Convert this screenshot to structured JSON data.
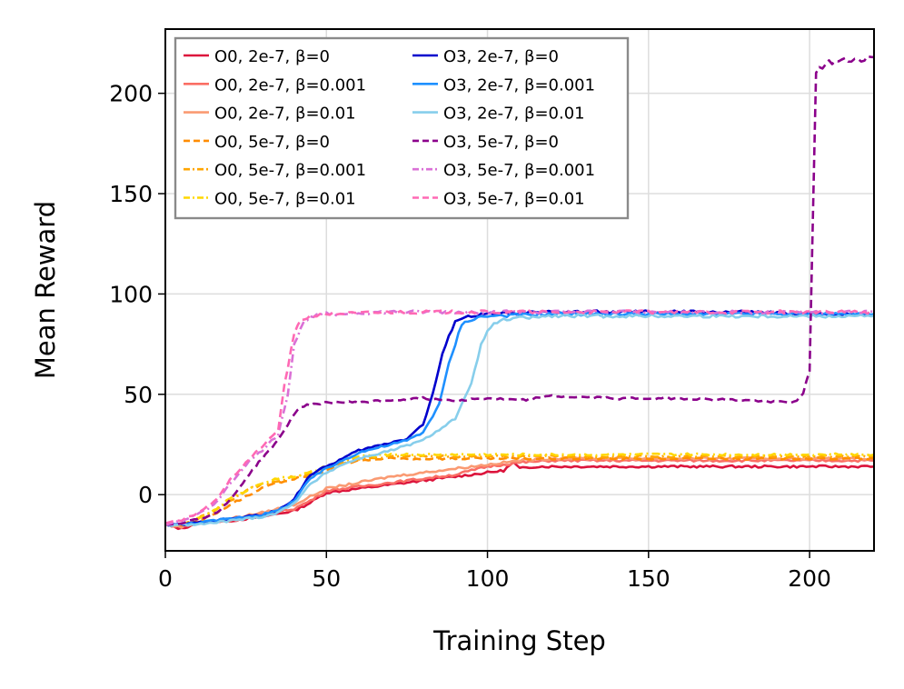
{
  "chart_data": {
    "type": "line",
    "title": "",
    "xlabel": "Training Step",
    "ylabel": "Mean Reward",
    "xlim": [
      0,
      220
    ],
    "ylim": [
      -28,
      232
    ],
    "xticks": [
      0,
      50,
      100,
      150,
      200
    ],
    "yticks": [
      0,
      50,
      100,
      150,
      200
    ],
    "grid": true,
    "legend_position": "top-left",
    "series": [
      {
        "name": "O0, 2e-7, β=0",
        "color": "#dc143c",
        "dash": "solid",
        "points": [
          [
            0,
            -15
          ],
          [
            5,
            -17
          ],
          [
            10,
            -14
          ],
          [
            20,
            -13
          ],
          [
            30,
            -11
          ],
          [
            40,
            -8
          ],
          [
            45,
            -4
          ],
          [
            50,
            1
          ],
          [
            60,
            3
          ],
          [
            70,
            5
          ],
          [
            80,
            7
          ],
          [
            90,
            9
          ],
          [
            100,
            11
          ],
          [
            105,
            12
          ],
          [
            108,
            16
          ],
          [
            110,
            13
          ],
          [
            115,
            14
          ],
          [
            130,
            14
          ],
          [
            150,
            14
          ],
          [
            170,
            14
          ],
          [
            190,
            14
          ],
          [
            210,
            14
          ],
          [
            220,
            14
          ]
        ]
      },
      {
        "name": "O0, 2e-7, β=0.001",
        "color": "#fa6e64",
        "dash": "solid",
        "points": [
          [
            0,
            -15
          ],
          [
            5,
            -16
          ],
          [
            10,
            -14
          ],
          [
            20,
            -13
          ],
          [
            30,
            -10
          ],
          [
            40,
            -7
          ],
          [
            45,
            -3
          ],
          [
            50,
            2
          ],
          [
            60,
            4
          ],
          [
            70,
            6
          ],
          [
            80,
            8
          ],
          [
            90,
            10
          ],
          [
            100,
            14
          ],
          [
            110,
            16
          ],
          [
            120,
            17
          ],
          [
            150,
            17
          ],
          [
            180,
            17
          ],
          [
            220,
            17
          ]
        ]
      },
      {
        "name": "O0, 2e-7, β=0.01",
        "color": "#fa9a72",
        "dash": "solid",
        "points": [
          [
            0,
            -15
          ],
          [
            5,
            -16
          ],
          [
            10,
            -14
          ],
          [
            20,
            -12
          ],
          [
            30,
            -9
          ],
          [
            40,
            -5
          ],
          [
            50,
            3
          ],
          [
            60,
            6
          ],
          [
            70,
            9
          ],
          [
            80,
            11
          ],
          [
            90,
            13
          ],
          [
            100,
            15
          ],
          [
            110,
            17
          ],
          [
            120,
            18
          ],
          [
            150,
            18
          ],
          [
            220,
            18
          ]
        ]
      },
      {
        "name": "O0, 5e-7, β=0",
        "color": "#ff8c00",
        "dash": "dash",
        "points": [
          [
            0,
            -15
          ],
          [
            5,
            -15
          ],
          [
            10,
            -13
          ],
          [
            15,
            -10
          ],
          [
            20,
            -5
          ],
          [
            25,
            -1
          ],
          [
            30,
            3
          ],
          [
            35,
            6
          ],
          [
            40,
            8
          ],
          [
            45,
            9
          ],
          [
            50,
            12
          ],
          [
            55,
            15
          ],
          [
            60,
            17
          ],
          [
            70,
            18
          ],
          [
            100,
            18
          ],
          [
            150,
            18
          ],
          [
            220,
            18
          ]
        ]
      },
      {
        "name": "O0, 5e-7, β=0.001",
        "color": "#ffa500",
        "dash": "dashdot",
        "points": [
          [
            0,
            -15
          ],
          [
            5,
            -15
          ],
          [
            10,
            -12
          ],
          [
            15,
            -8
          ],
          [
            20,
            -3
          ],
          [
            25,
            2
          ],
          [
            30,
            5
          ],
          [
            35,
            7
          ],
          [
            40,
            9
          ],
          [
            45,
            10
          ],
          [
            50,
            13
          ],
          [
            55,
            16
          ],
          [
            60,
            18
          ],
          [
            70,
            19
          ],
          [
            100,
            19
          ],
          [
            150,
            19
          ],
          [
            220,
            19
          ]
        ]
      },
      {
        "name": "O0, 5e-7, β=0.01",
        "color": "#ffd700",
        "dash": "dashdot",
        "points": [
          [
            0,
            -15
          ],
          [
            5,
            -15
          ],
          [
            10,
            -12
          ],
          [
            15,
            -8
          ],
          [
            20,
            -2
          ],
          [
            25,
            2
          ],
          [
            30,
            6
          ],
          [
            35,
            8
          ],
          [
            40,
            9
          ],
          [
            45,
            11
          ],
          [
            50,
            14
          ],
          [
            55,
            17
          ],
          [
            60,
            19
          ],
          [
            70,
            20
          ],
          [
            100,
            20
          ],
          [
            150,
            20
          ],
          [
            220,
            20
          ]
        ]
      },
      {
        "name": "O3, 2e-7, β=0",
        "color": "#0000cd",
        "dash": "solid",
        "points": [
          [
            0,
            -15
          ],
          [
            5,
            -15
          ],
          [
            10,
            -14
          ],
          [
            20,
            -12
          ],
          [
            30,
            -10
          ],
          [
            35,
            -8
          ],
          [
            40,
            -2
          ],
          [
            45,
            10
          ],
          [
            50,
            14
          ],
          [
            55,
            18
          ],
          [
            60,
            22
          ],
          [
            65,
            24
          ],
          [
            70,
            26
          ],
          [
            75,
            28
          ],
          [
            80,
            35
          ],
          [
            83,
            50
          ],
          [
            86,
            70
          ],
          [
            90,
            87
          ],
          [
            95,
            89
          ],
          [
            100,
            90
          ],
          [
            120,
            91
          ],
          [
            150,
            91
          ],
          [
            180,
            91
          ],
          [
            200,
            90
          ],
          [
            220,
            90
          ]
        ]
      },
      {
        "name": "O3, 2e-7, β=0.001",
        "color": "#1e90ff",
        "dash": "solid",
        "points": [
          [
            0,
            -15
          ],
          [
            5,
            -15
          ],
          [
            10,
            -14
          ],
          [
            20,
            -12
          ],
          [
            30,
            -10
          ],
          [
            35,
            -8
          ],
          [
            40,
            -3
          ],
          [
            45,
            8
          ],
          [
            50,
            13
          ],
          [
            55,
            17
          ],
          [
            60,
            21
          ],
          [
            65,
            23
          ],
          [
            70,
            25
          ],
          [
            75,
            27
          ],
          [
            80,
            31
          ],
          [
            85,
            45
          ],
          [
            88,
            65
          ],
          [
            92,
            85
          ],
          [
            96,
            88
          ],
          [
            100,
            89
          ],
          [
            120,
            90
          ],
          [
            150,
            90
          ],
          [
            180,
            90
          ],
          [
            200,
            90
          ],
          [
            220,
            90
          ]
        ]
      },
      {
        "name": "O3, 2e-7, β=0.01",
        "color": "#87ceeb",
        "dash": "solid",
        "points": [
          [
            0,
            -15
          ],
          [
            5,
            -15
          ],
          [
            10,
            -15
          ],
          [
            20,
            -13
          ],
          [
            30,
            -11
          ],
          [
            35,
            -9
          ],
          [
            40,
            -4
          ],
          [
            45,
            5
          ],
          [
            50,
            11
          ],
          [
            55,
            15
          ],
          [
            60,
            18
          ],
          [
            65,
            20
          ],
          [
            70,
            22
          ],
          [
            80,
            27
          ],
          [
            90,
            38
          ],
          [
            95,
            55
          ],
          [
            98,
            75
          ],
          [
            101,
            84
          ],
          [
            105,
            87
          ],
          [
            110,
            88
          ],
          [
            120,
            89
          ],
          [
            150,
            89
          ],
          [
            220,
            89
          ]
        ]
      },
      {
        "name": "O3, 5e-7, β=0",
        "color": "#8b008b",
        "dash": "dash",
        "points": [
          [
            0,
            -15
          ],
          [
            5,
            -14
          ],
          [
            10,
            -12
          ],
          [
            15,
            -10
          ],
          [
            20,
            -3
          ],
          [
            25,
            8
          ],
          [
            30,
            18
          ],
          [
            35,
            27
          ],
          [
            38,
            35
          ],
          [
            40,
            40
          ],
          [
            42,
            44
          ],
          [
            50,
            46
          ],
          [
            60,
            46
          ],
          [
            70,
            47
          ],
          [
            80,
            48
          ],
          [
            90,
            47
          ],
          [
            100,
            48
          ],
          [
            110,
            47
          ],
          [
            120,
            49
          ],
          [
            140,
            48
          ],
          [
            160,
            48
          ],
          [
            180,
            47
          ],
          [
            195,
            46
          ],
          [
            198,
            50
          ],
          [
            200,
            62
          ],
          [
            202,
            210
          ],
          [
            205,
            215
          ],
          [
            210,
            216
          ],
          [
            215,
            217
          ],
          [
            220,
            218
          ]
        ]
      },
      {
        "name": "O3, 5e-7, β=0.001",
        "color": "#da70d6",
        "dash": "dashdot",
        "points": [
          [
            0,
            -15
          ],
          [
            5,
            -13
          ],
          [
            10,
            -10
          ],
          [
            15,
            -5
          ],
          [
            20,
            5
          ],
          [
            25,
            15
          ],
          [
            30,
            22
          ],
          [
            35,
            30
          ],
          [
            38,
            50
          ],
          [
            40,
            75
          ],
          [
            43,
            86
          ],
          [
            45,
            89
          ],
          [
            50,
            90
          ],
          [
            70,
            91
          ],
          [
            100,
            91
          ],
          [
            150,
            91
          ],
          [
            200,
            91
          ],
          [
            220,
            91
          ]
        ]
      },
      {
        "name": "O3, 5e-7, β=0.01",
        "color": "#ff69b4",
        "dash": "dash",
        "points": [
          [
            0,
            -14
          ],
          [
            5,
            -13
          ],
          [
            10,
            -9
          ],
          [
            15,
            -4
          ],
          [
            20,
            7
          ],
          [
            25,
            16
          ],
          [
            30,
            24
          ],
          [
            35,
            32
          ],
          [
            37,
            55
          ],
          [
            40,
            80
          ],
          [
            42,
            87
          ],
          [
            45,
            89
          ],
          [
            50,
            90
          ],
          [
            70,
            91
          ],
          [
            100,
            91
          ],
          [
            150,
            91
          ],
          [
            200,
            91
          ],
          [
            220,
            91
          ]
        ]
      }
    ]
  }
}
